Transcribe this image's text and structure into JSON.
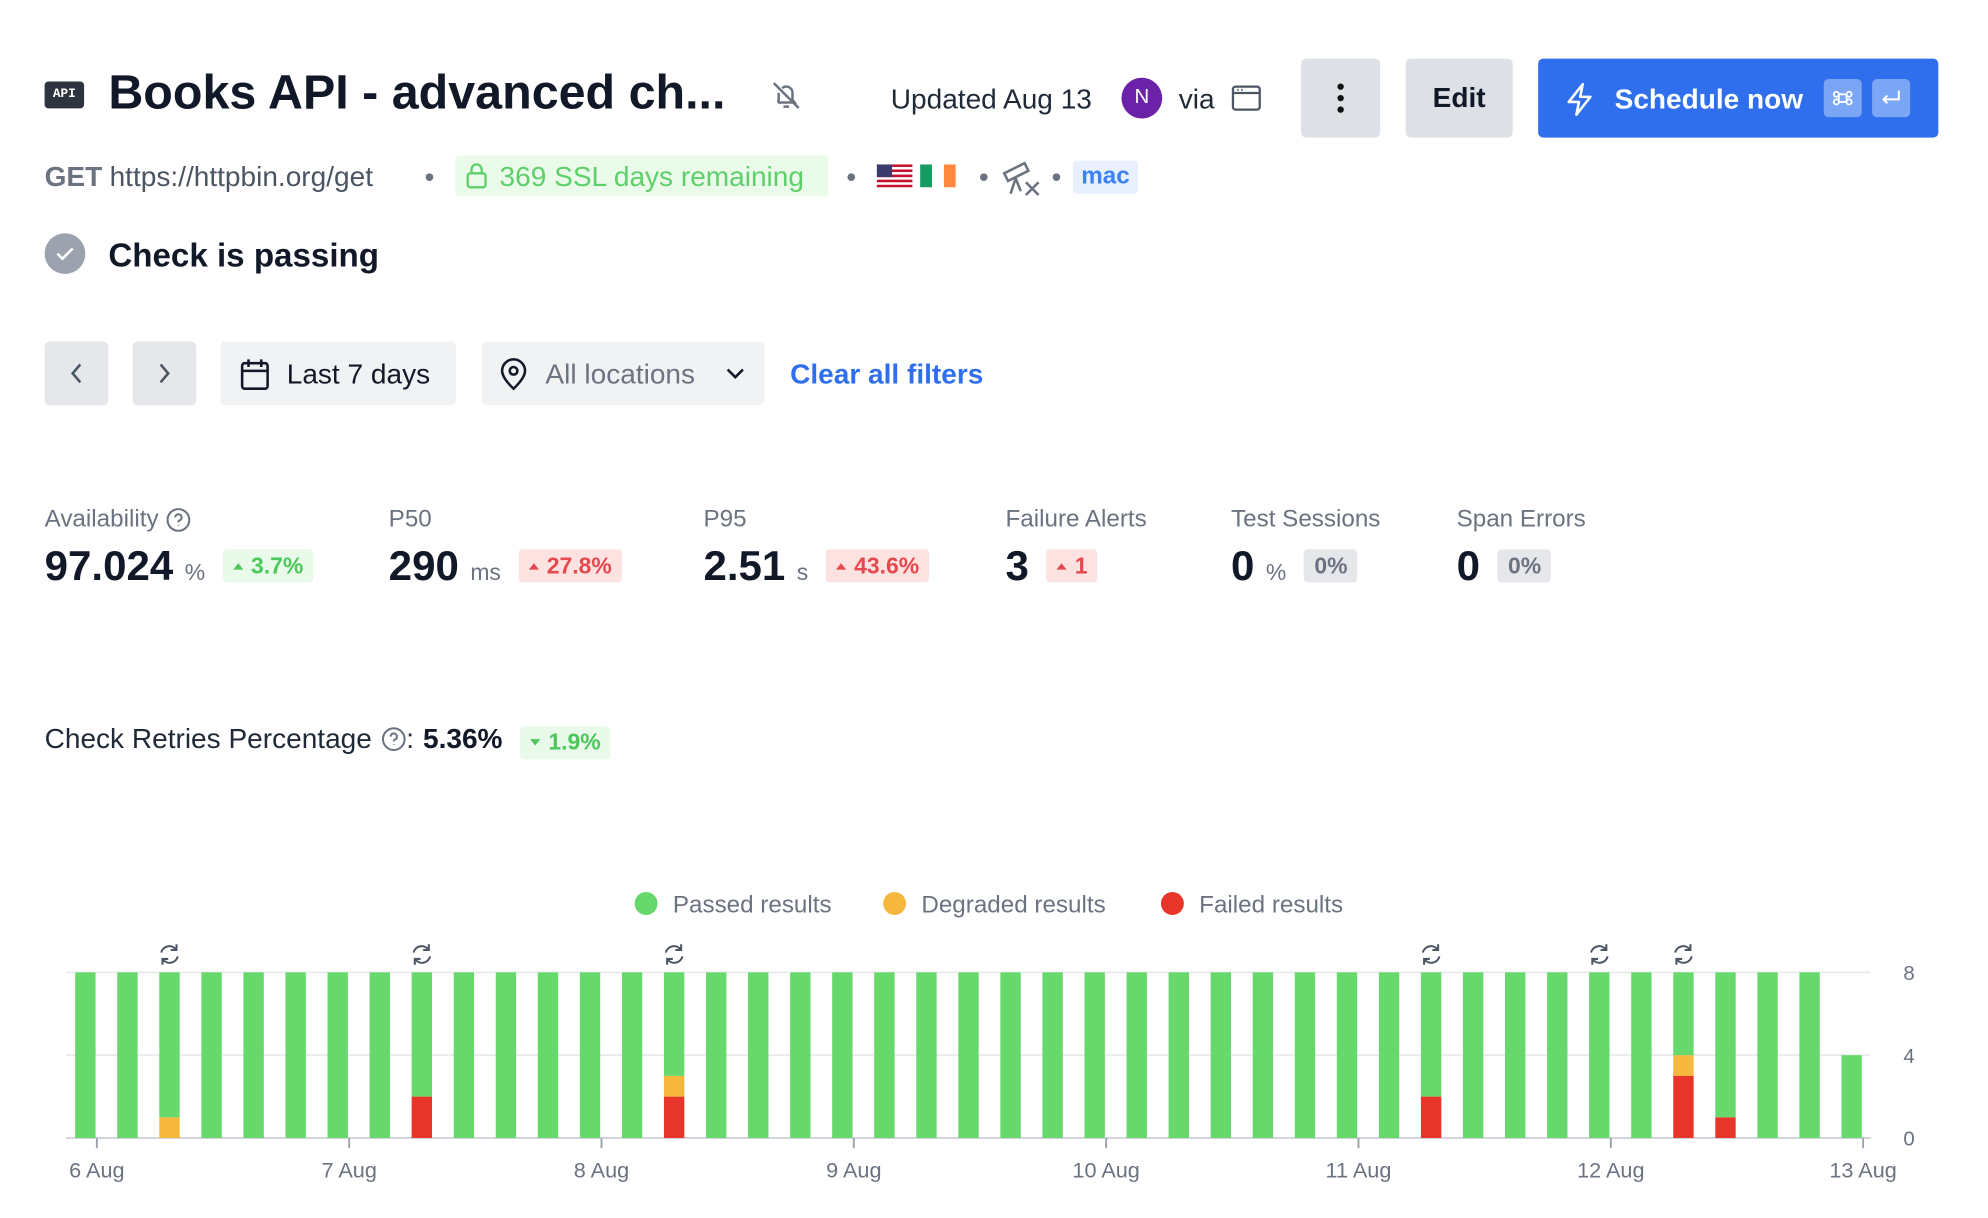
{
  "header": {
    "badge": "API",
    "title": "Books API - advanced ch...",
    "updated": "Updated Aug 13",
    "avatar": "N",
    "via": "via",
    "edit": "Edit",
    "schedule": "Schedule now"
  },
  "request": {
    "method": "GET",
    "url": "https://httpbin.org/get",
    "ssl": "369 SSL days remaining",
    "tag": "mac"
  },
  "status": "Check is passing",
  "filters": {
    "range": "Last 7 days",
    "locations": "All locations",
    "clear": "Clear all filters"
  },
  "metrics": [
    {
      "label": "Availability",
      "value": "97.024",
      "unit": "%",
      "change": "3.7%",
      "trend": "up",
      "tone": "green"
    },
    {
      "label": "P50",
      "value": "290",
      "unit": "ms",
      "change": "27.8%",
      "trend": "up",
      "tone": "red"
    },
    {
      "label": "P95",
      "value": "2.51",
      "unit": "s",
      "change": "43.6%",
      "trend": "up",
      "tone": "red"
    },
    {
      "label": "Failure Alerts",
      "value": "3",
      "change": "1",
      "trend": "up",
      "tone": "red"
    },
    {
      "label": "Test Sessions",
      "value": "0",
      "unit": "%",
      "change": "0%",
      "tone": "gray"
    },
    {
      "label": "Span Errors",
      "value": "0",
      "change": "0%",
      "tone": "gray"
    }
  ],
  "retries": {
    "label": "Check Retries Percentage",
    "separator": ":",
    "value": "5.36%",
    "change": "1.9%",
    "trend": "down",
    "tone": "green"
  },
  "chart_data": {
    "type": "stacked_bar",
    "categories": [
      null,
      null,
      null,
      null,
      null,
      null,
      null,
      null,
      null,
      null,
      null,
      null,
      null,
      null,
      null,
      null,
      null,
      null,
      null,
      null,
      null,
      null,
      null,
      null,
      null,
      null,
      null,
      null,
      null,
      null,
      null,
      null,
      null,
      null,
      null,
      null,
      null,
      null,
      null,
      null,
      null,
      null,
      null
    ],
    "series": [
      {
        "name": "Failed results",
        "color": "#e8352a",
        "values": [
          0,
          0,
          0,
          0,
          0,
          0,
          0,
          0,
          2,
          0,
          0,
          0,
          0,
          0,
          2,
          0,
          0,
          0,
          0,
          0,
          0,
          0,
          0,
          0,
          0,
          0,
          0,
          0,
          0,
          0,
          0,
          0,
          2,
          0,
          0,
          0,
          0,
          0,
          3,
          1,
          0,
          0,
          0
        ]
      },
      {
        "name": "Degraded results",
        "color": "#f5b83d",
        "values": [
          0,
          0,
          1,
          0,
          0,
          0,
          0,
          0,
          0,
          0,
          0,
          0,
          0,
          0,
          1,
          0,
          0,
          0,
          0,
          0,
          0,
          0,
          0,
          0,
          0,
          0,
          0,
          0,
          0,
          0,
          0,
          0,
          0,
          0,
          0,
          0,
          0,
          0,
          1,
          0,
          0,
          0,
          0
        ]
      },
      {
        "name": "Passed results",
        "color": "#67d86b",
        "values": [
          8,
          8,
          7,
          8,
          8,
          8,
          8,
          8,
          6,
          8,
          8,
          8,
          8,
          8,
          5,
          8,
          8,
          8,
          8,
          8,
          8,
          8,
          8,
          8,
          8,
          8,
          8,
          8,
          8,
          8,
          8,
          8,
          6,
          8,
          8,
          8,
          8,
          8,
          4,
          7,
          8,
          8,
          4
        ]
      }
    ],
    "retried": [
      false,
      false,
      true,
      false,
      false,
      false,
      false,
      false,
      true,
      false,
      false,
      false,
      false,
      false,
      true,
      false,
      false,
      false,
      false,
      false,
      false,
      false,
      false,
      false,
      false,
      false,
      false,
      false,
      false,
      false,
      false,
      false,
      true,
      false,
      false,
      false,
      true,
      false,
      true,
      false,
      false,
      false,
      false
    ],
    "legend_order": [
      2,
      1,
      0
    ],
    "ylim": [
      0,
      8
    ],
    "yticks": [
      0,
      4,
      8
    ],
    "grid": true,
    "xticks": [
      {
        "value": 0,
        "label": "6 Aug"
      },
      {
        "value": 6,
        "label": "7 Aug"
      },
      {
        "value": 12,
        "label": "8 Aug"
      },
      {
        "value": 18,
        "label": "9 Aug"
      },
      {
        "value": 24,
        "label": "10 Aug"
      },
      {
        "value": 30,
        "label": "11 Aug"
      },
      {
        "value": 36,
        "label": "12 Aug"
      },
      {
        "value": 42,
        "label": "13 Aug"
      }
    ]
  }
}
